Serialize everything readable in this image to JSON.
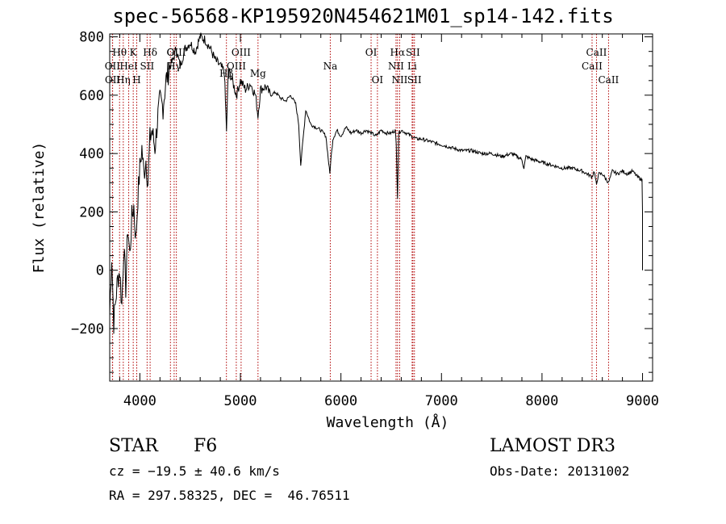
{
  "chart_data": {
    "type": "line",
    "title": "spec-56568-KP195920N454621M01_sp14-142.fits",
    "xlabel": "Wavelength (Å)",
    "ylabel": "Flux (relative)",
    "xlim": [
      3700,
      9100
    ],
    "ylim": [
      -380,
      810
    ],
    "xticks": [
      4000,
      5000,
      6000,
      7000,
      8000,
      9000
    ],
    "yticks": [
      -200,
      0,
      200,
      400,
      600,
      800
    ],
    "xtick_labels": [
      "4000",
      "5000",
      "6000",
      "7000",
      "8000",
      "9000"
    ],
    "ytick_labels": [
      "−200",
      "0",
      "200",
      "400",
      "600",
      "800"
    ],
    "series": [
      {
        "name": "flux",
        "x": [
          3700,
          3720,
          3740,
          3760,
          3780,
          3800,
          3820,
          3840,
          3860,
          3880,
          3900,
          3920,
          3940,
          3960,
          3980,
          4000,
          4020,
          4040,
          4060,
          4080,
          4100,
          4120,
          4150,
          4180,
          4200,
          4230,
          4260,
          4300,
          4330,
          4360,
          4400,
          4450,
          4500,
          4550,
          4600,
          4650,
          4700,
          4750,
          4800,
          4840,
          4862,
          4880,
          4920,
          4960,
          5000,
          5050,
          5100,
          5150,
          5175,
          5200,
          5250,
          5300,
          5350,
          5400,
          5450,
          5500,
          5550,
          5580,
          5600,
          5650,
          5700,
          5750,
          5800,
          5850,
          5890,
          5895,
          5920,
          5960,
          6000,
          6050,
          6100,
          6150,
          6200,
          6250,
          6300,
          6350,
          6400,
          6450,
          6500,
          6540,
          6550,
          6563,
          6575,
          6600,
          6650,
          6700,
          6750,
          6800,
          6900,
          7000,
          7100,
          7200,
          7300,
          7400,
          7500,
          7600,
          7700,
          7800,
          7820,
          7840,
          7900,
          8000,
          8100,
          8200,
          8300,
          8400,
          8450,
          8498,
          8520,
          8542,
          8560,
          8600,
          8662,
          8700,
          8750,
          8800,
          8850,
          8900,
          8950,
          8995,
          9000
        ],
        "y": [
          -150,
          50,
          -180,
          -100,
          -30,
          0,
          -120,
          80,
          -60,
          150,
          50,
          180,
          220,
          100,
          250,
          350,
          420,
          330,
          380,
          300,
          450,
          480,
          420,
          530,
          580,
          560,
          650,
          700,
          720,
          760,
          700,
          760,
          780,
          750,
          800,
          790,
          760,
          720,
          700,
          680,
          480,
          690,
          650,
          600,
          650,
          620,
          640,
          600,
          530,
          620,
          630,
          600,
          610,
          590,
          580,
          600,
          570,
          500,
          360,
          550,
          500,
          490,
          480,
          460,
          330,
          360,
          450,
          480,
          460,
          490,
          470,
          480,
          470,
          480,
          470,
          460,
          480,
          470,
          470,
          480,
          430,
          250,
          470,
          480,
          470,
          460,
          450,
          450,
          440,
          430,
          420,
          410,
          410,
          400,
          400,
          390,
          400,
          380,
          350,
          390,
          380,
          370,
          360,
          350,
          350,
          340,
          330,
          320,
          340,
          290,
          330,
          330,
          300,
          340,
          330,
          340,
          330,
          340,
          320,
          310,
          200
        ]
      }
    ],
    "lines": [
      {
        "name": "OII",
        "w": 3727,
        "side": "top",
        "row": 2
      },
      {
        "name": "OII",
        "w": 3729,
        "side": "top",
        "row": 3
      },
      {
        "name": "Hθ",
        "w": 3798,
        "side": "top",
        "row": 1
      },
      {
        "name": "Hη",
        "w": 3835,
        "side": "top",
        "row": 3
      },
      {
        "name": "HeI",
        "w": 3889,
        "side": "top",
        "row": 2
      },
      {
        "name": "K",
        "w": 3934,
        "side": "top",
        "row": 1
      },
      {
        "name": "H",
        "w": 3969,
        "side": "top",
        "row": 3
      },
      {
        "name": "SII",
        "w": 4072,
        "side": "top",
        "row": 2
      },
      {
        "name": "Hδ",
        "w": 4102,
        "side": "top",
        "row": 1
      },
      {
        "name": "G",
        "w": 4304,
        "side": "top",
        "row": 1
      },
      {
        "name": "Hγ",
        "w": 4341,
        "side": "top",
        "row": 2
      },
      {
        "name": "OIII",
        "w": 4363,
        "side": "top",
        "row": 1
      },
      {
        "name": "Hβ",
        "w": 4861,
        "side": "mid",
        "row": 4
      },
      {
        "name": "OIII",
        "w": 4959,
        "side": "top",
        "row": 2
      },
      {
        "name": "OIII",
        "w": 5007,
        "side": "top",
        "row": 1
      },
      {
        "name": "Mg",
        "w": 5175,
        "side": "mid",
        "row": 4
      },
      {
        "name": "Na",
        "w": 5894,
        "side": "top",
        "row": 2
      },
      {
        "name": "OI",
        "w": 6300,
        "side": "top",
        "row": 1
      },
      {
        "name": "OI",
        "w": 6363,
        "side": "top",
        "row": 3
      },
      {
        "name": "NII",
        "w": 6548,
        "side": "top",
        "row": 2
      },
      {
        "name": "Hα",
        "w": 6563,
        "side": "top",
        "row": 1
      },
      {
        "name": "NII",
        "w": 6584,
        "side": "top",
        "row": 3
      },
      {
        "name": "Li",
        "w": 6708,
        "side": "top",
        "row": 2
      },
      {
        "name": "SII",
        "w": 6716,
        "side": "top",
        "row": 1
      },
      {
        "name": "SII",
        "w": 6731,
        "side": "top",
        "row": 3
      },
      {
        "name": "CaII",
        "w": 8498,
        "side": "top",
        "row": 2
      },
      {
        "name": "CaII",
        "w": 8542,
        "side": "top",
        "row": 1
      },
      {
        "name": "CaII",
        "w": 8662,
        "side": "top",
        "row": 3
      }
    ]
  },
  "info": {
    "class": "STAR",
    "subclass": "F6",
    "survey": "LAMOST DR3",
    "cz": "cz = −19.5 ± 40.6 km/s",
    "obsdate": "Obs-Date: 20131002",
    "radec": "RA = 297.58325, DEC =  46.76511"
  },
  "colors": {
    "line_marker": "#b00000",
    "spectrum": "#000000"
  }
}
